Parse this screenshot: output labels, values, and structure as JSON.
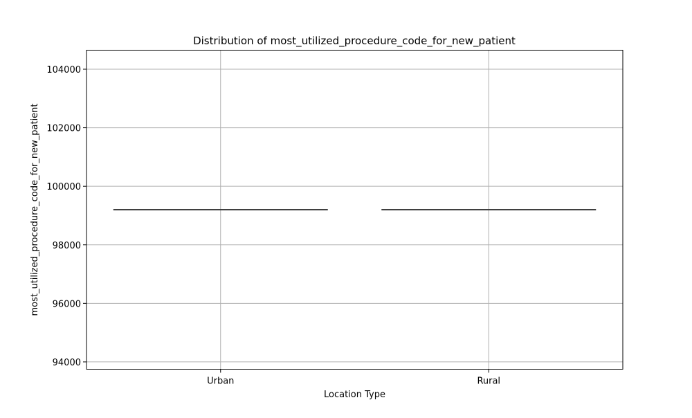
{
  "chart_data": {
    "type": "box",
    "title": "Distribution of most_utilized_procedure_code_for_new_patient",
    "xlabel": "Location Type",
    "ylabel": "most_utilized_procedure_code_for_new_patient",
    "categories": [
      "Urban",
      "Rural"
    ],
    "series": [
      {
        "values": [
          99200,
          99200
        ]
      }
    ],
    "ylim": [
      93750,
      104650
    ],
    "yticks": [
      94000,
      96000,
      98000,
      100000,
      102000,
      104000
    ],
    "ytick_labels": [
      "94000",
      "96000",
      "98000",
      "100000",
      "102000",
      "104000"
    ],
    "grid": true,
    "colors": {
      "grid": "#b0b0b0",
      "axes": "#000000",
      "median_line": "#3f3f3f"
    }
  }
}
